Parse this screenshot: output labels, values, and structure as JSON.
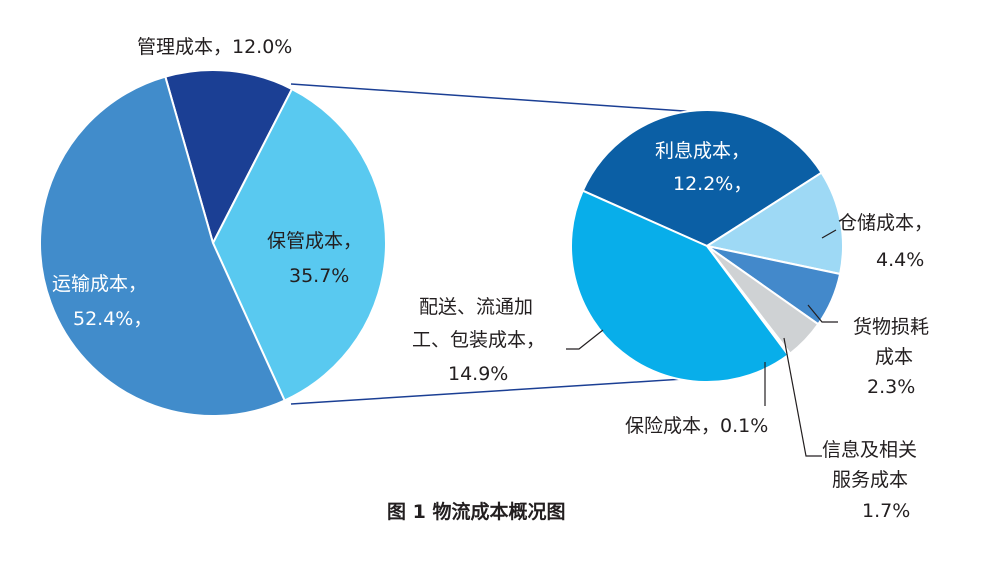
{
  "chart_data": [
    {
      "type": "pie",
      "title": "",
      "slices": [
        {
          "name": "管理成本",
          "value": 12.0,
          "color": "#1b3f94"
        },
        {
          "name": "保管成本",
          "value": 35.7,
          "color": "#59c9f0"
        },
        {
          "name": "运输成本",
          "value": 52.4,
          "color": "#418ccb"
        }
      ],
      "labels": {
        "management": {
          "line1": "管理成本，12.0%"
        },
        "storage": {
          "line1": "保管成本，",
          "line2": "35.7%"
        },
        "transport": {
          "line1": "运输成本，",
          "line2": "52.4%，"
        }
      }
    },
    {
      "type": "pie",
      "title": "",
      "breakdown_of": "保管成本",
      "slices": [
        {
          "name": "利息成本",
          "value": 12.2,
          "color": "#0b5fa5"
        },
        {
          "name": "仓储成本",
          "value": 4.4,
          "color": "#9ed9f5"
        },
        {
          "name": "货物损耗成本",
          "value": 2.3,
          "color": "#4389cb"
        },
        {
          "name": "信息及相关服务成本",
          "value": 1.7,
          "color": "#cfd2d4"
        },
        {
          "name": "保险成本",
          "value": 0.1,
          "color": "#e0e2e4"
        },
        {
          "name": "配送、流通加工、包装成本",
          "value": 14.9,
          "color": "#08aeea"
        }
      ],
      "labels": {
        "interest": {
          "line1": "利息成本，",
          "line2": "12.2%，"
        },
        "warehouse": {
          "line1": "仓储成本，",
          "line2": "4.4%"
        },
        "loss": {
          "line1": "货物损耗",
          "line2": "成本",
          "line3": "2.3%"
        },
        "info": {
          "line1": "信息及相关",
          "line2": "服务成本",
          "line3": "1.7%"
        },
        "insurance": {
          "line1": "保险成本，0.1%"
        },
        "distribution": {
          "line1": "配送、流通加",
          "line2": "工、包装成本，",
          "line3": "14.9%"
        }
      }
    }
  ],
  "caption": "图 1  物流成本概况图",
  "colors": {
    "connector": "#1b3f94",
    "leader": "#231f20"
  }
}
